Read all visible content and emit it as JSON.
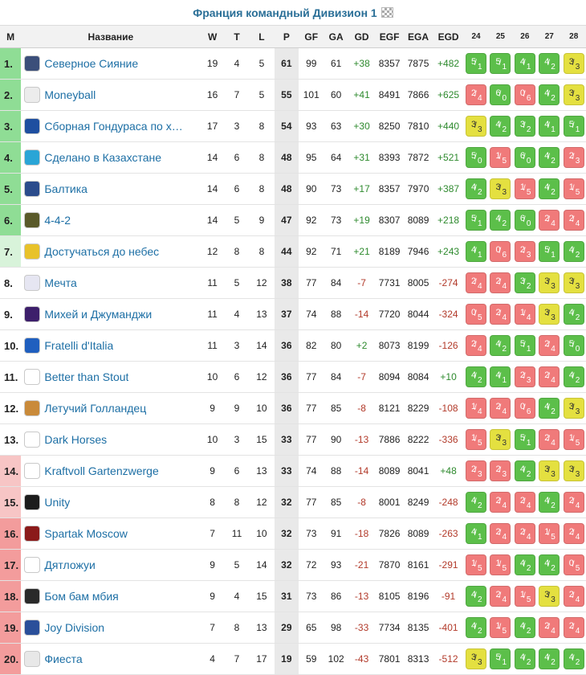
{
  "title": "Франция командный Дивизион 1",
  "headers": {
    "pos": "М",
    "name": "Название",
    "w": "W",
    "d": "T",
    "l": "L",
    "pts": "P",
    "gf": "GF",
    "ga": "GA",
    "gd": "GD",
    "egf": "EGF",
    "ega": "EGA",
    "egd": "EGD",
    "rounds": [
      "24",
      "25",
      "26",
      "27",
      "28"
    ]
  },
  "colors": {
    "title": "#2a6f97",
    "team_link": "#1d6fa5",
    "win": "#5cbf4a",
    "draw": "#e4e040",
    "loss": "#f07a7a",
    "zone_green": "#8fdd95",
    "zone_light_green": "#d8f3da",
    "zone_pink": "#f7c5c5",
    "zone_red": "#f39c9c"
  },
  "rows": [
    {
      "pos": "1.",
      "zone": "green",
      "team": "Северное Сияние",
      "logo_icon": "crest-icon",
      "logo_color": "#3b4f7a",
      "w": "19",
      "d": "4",
      "l": "5",
      "pts": "61",
      "gf": "99",
      "ga": "61",
      "gd": "+38",
      "egf": "8357",
      "ega": "7875",
      "egd": "+482",
      "res": [
        [
          "5",
          "1",
          "win"
        ],
        [
          "5",
          "1",
          "win"
        ],
        [
          "4",
          "1",
          "win"
        ],
        [
          "4",
          "2",
          "win"
        ],
        [
          "3",
          "3",
          "draw"
        ]
      ]
    },
    {
      "pos": "2.",
      "zone": "green",
      "team": "Moneyball",
      "logo_icon": "soccer-ball-icon",
      "logo_color": "#ececec",
      "w": "16",
      "d": "7",
      "l": "5",
      "pts": "55",
      "gf": "101",
      "ga": "60",
      "gd": "+41",
      "egf": "8491",
      "ega": "7866",
      "egd": "+625",
      "res": [
        [
          "2",
          "4",
          "loss"
        ],
        [
          "6",
          "0",
          "win"
        ],
        [
          "0",
          "6",
          "loss"
        ],
        [
          "4",
          "2",
          "win"
        ],
        [
          "3",
          "3",
          "draw"
        ]
      ]
    },
    {
      "pos": "3.",
      "zone": "green",
      "team": "Сборная Гондураса по х…",
      "logo_icon": "letter-h-icon",
      "logo_color": "#1e4fa0",
      "w": "17",
      "d": "3",
      "l": "8",
      "pts": "54",
      "gf": "93",
      "ga": "63",
      "gd": "+30",
      "egf": "8250",
      "ega": "7810",
      "egd": "+440",
      "res": [
        [
          "3",
          "3",
          "draw"
        ],
        [
          "4",
          "2",
          "win"
        ],
        [
          "3",
          "2",
          "win"
        ],
        [
          "4",
          "1",
          "win"
        ],
        [
          "5",
          "1",
          "win"
        ]
      ]
    },
    {
      "pos": "4.",
      "zone": "green",
      "team": "Сделано в Казахстане",
      "logo_icon": "kazakhstan-flag-icon",
      "logo_color": "#2aa5d6",
      "w": "14",
      "d": "6",
      "l": "8",
      "pts": "48",
      "gf": "95",
      "ga": "64",
      "gd": "+31",
      "egf": "8393",
      "ega": "7872",
      "egd": "+521",
      "res": [
        [
          "5",
          "0",
          "win"
        ],
        [
          "1",
          "5",
          "loss"
        ],
        [
          "6",
          "0",
          "win"
        ],
        [
          "4",
          "2",
          "win"
        ],
        [
          "2",
          "3",
          "loss"
        ]
      ]
    },
    {
      "pos": "5.",
      "zone": "green",
      "team": "Балтика",
      "logo_icon": "shield-icon",
      "logo_color": "#2b4c8c",
      "w": "14",
      "d": "6",
      "l": "8",
      "pts": "48",
      "gf": "90",
      "ga": "73",
      "gd": "+17",
      "egf": "8357",
      "ega": "7970",
      "egd": "+387",
      "res": [
        [
          "4",
          "2",
          "win"
        ],
        [
          "3",
          "3",
          "draw"
        ],
        [
          "1",
          "5",
          "loss"
        ],
        [
          "4",
          "2",
          "win"
        ],
        [
          "1",
          "5",
          "loss"
        ]
      ]
    },
    {
      "pos": "6.",
      "zone": "green",
      "team": "4-4-2",
      "logo_icon": "badge-icon",
      "logo_color": "#5a5a2a",
      "w": "14",
      "d": "5",
      "l": "9",
      "pts": "47",
      "gf": "92",
      "ga": "73",
      "gd": "+19",
      "egf": "8307",
      "ega": "8089",
      "egd": "+218",
      "res": [
        [
          "5",
          "1",
          "win"
        ],
        [
          "4",
          "2",
          "win"
        ],
        [
          "6",
          "0",
          "win"
        ],
        [
          "2",
          "4",
          "loss"
        ],
        [
          "2",
          "4",
          "loss"
        ]
      ]
    },
    {
      "pos": "7.",
      "zone": "lgreen",
      "team": "Достучаться до небес",
      "logo_icon": "crown-icon",
      "logo_color": "#e8c22a",
      "w": "12",
      "d": "8",
      "l": "8",
      "pts": "44",
      "gf": "92",
      "ga": "71",
      "gd": "+21",
      "egf": "8189",
      "ega": "7946",
      "egd": "+243",
      "res": [
        [
          "4",
          "1",
          "win"
        ],
        [
          "0",
          "6",
          "loss"
        ],
        [
          "2",
          "3",
          "loss"
        ],
        [
          "5",
          "1",
          "win"
        ],
        [
          "4",
          "2",
          "win"
        ]
      ]
    },
    {
      "pos": "8.",
      "zone": "white",
      "team": "Мечта",
      "logo_icon": "club-logo-icon",
      "logo_color": "#e6e6f2",
      "w": "11",
      "d": "5",
      "l": "12",
      "pts": "38",
      "gf": "77",
      "ga": "84",
      "gd": "-7",
      "egf": "7731",
      "ega": "8005",
      "egd": "-274",
      "res": [
        [
          "2",
          "4",
          "loss"
        ],
        [
          "2",
          "4",
          "loss"
        ],
        [
          "3",
          "2",
          "win"
        ],
        [
          "3",
          "3",
          "draw"
        ],
        [
          "3",
          "3",
          "draw"
        ]
      ]
    },
    {
      "pos": "9.",
      "zone": "white",
      "team": "Михей и Джуманджи",
      "logo_icon": "lion-crest-icon",
      "logo_color": "#3d1f6b",
      "w": "11",
      "d": "4",
      "l": "13",
      "pts": "37",
      "gf": "74",
      "ga": "88",
      "gd": "-14",
      "egf": "7720",
      "ega": "8044",
      "egd": "-324",
      "res": [
        [
          "0",
          "5",
          "loss"
        ],
        [
          "2",
          "4",
          "loss"
        ],
        [
          "1",
          "4",
          "loss"
        ],
        [
          "3",
          "3",
          "draw"
        ],
        [
          "4",
          "2",
          "win"
        ]
      ]
    },
    {
      "pos": "10.",
      "zone": "white",
      "team": "Fratelli d'Italia",
      "logo_icon": "blue-crest-icon",
      "logo_color": "#1f5fbf",
      "w": "11",
      "d": "3",
      "l": "14",
      "pts": "36",
      "gf": "82",
      "ga": "80",
      "gd": "+2",
      "egf": "8073",
      "ega": "8199",
      "egd": "-126",
      "res": [
        [
          "2",
          "4",
          "loss"
        ],
        [
          "4",
          "2",
          "win"
        ],
        [
          "5",
          "1",
          "win"
        ],
        [
          "2",
          "4",
          "loss"
        ],
        [
          "5",
          "0",
          "win"
        ]
      ]
    },
    {
      "pos": "11.",
      "zone": "white",
      "team": "Better than Stout",
      "logo_icon": "bts-logo-icon",
      "logo_color": "#ffffff",
      "w": "10",
      "d": "6",
      "l": "12",
      "pts": "36",
      "gf": "77",
      "ga": "84",
      "gd": "-7",
      "egf": "8094",
      "ega": "8084",
      "egd": "+10",
      "res": [
        [
          "4",
          "2",
          "win"
        ],
        [
          "4",
          "1",
          "win"
        ],
        [
          "2",
          "3",
          "loss"
        ],
        [
          "2",
          "4",
          "loss"
        ],
        [
          "4",
          "2",
          "win"
        ]
      ]
    },
    {
      "pos": "12.",
      "zone": "white",
      "team": "Летучий Голландец",
      "logo_icon": "ship-icon",
      "logo_color": "#c98a3a",
      "w": "9",
      "d": "9",
      "l": "10",
      "pts": "36",
      "gf": "77",
      "ga": "85",
      "gd": "-8",
      "egf": "8121",
      "ega": "8229",
      "egd": "-108",
      "res": [
        [
          "1",
          "4",
          "loss"
        ],
        [
          "2",
          "4",
          "loss"
        ],
        [
          "0",
          "6",
          "loss"
        ],
        [
          "4",
          "2",
          "win"
        ],
        [
          "3",
          "3",
          "draw"
        ]
      ]
    },
    {
      "pos": "13.",
      "zone": "white",
      "team": "Dark Horses",
      "logo_icon": "horse-icon",
      "logo_color": "#ffffff",
      "w": "10",
      "d": "3",
      "l": "15",
      "pts": "33",
      "gf": "77",
      "ga": "90",
      "gd": "-13",
      "egf": "7886",
      "ega": "8222",
      "egd": "-336",
      "res": [
        [
          "1",
          "5",
          "loss"
        ],
        [
          "3",
          "3",
          "draw"
        ],
        [
          "5",
          "1",
          "win"
        ],
        [
          "2",
          "4",
          "loss"
        ],
        [
          "1",
          "5",
          "loss"
        ]
      ]
    },
    {
      "pos": "14.",
      "zone": "pink",
      "team": "Kraftvoll Gartenzwerge",
      "logo_icon": "gnome-icon",
      "logo_color": "#ffffff",
      "w": "9",
      "d": "6",
      "l": "13",
      "pts": "33",
      "gf": "74",
      "ga": "88",
      "gd": "-14",
      "egf": "8089",
      "ega": "8041",
      "egd": "+48",
      "res": [
        [
          "2",
          "3",
          "loss"
        ],
        [
          "2",
          "3",
          "loss"
        ],
        [
          "4",
          "2",
          "win"
        ],
        [
          "3",
          "3",
          "draw"
        ],
        [
          "3",
          "3",
          "draw"
        ]
      ]
    },
    {
      "pos": "15.",
      "zone": "pink",
      "team": "Unity",
      "logo_icon": "lightning-icon",
      "logo_color": "#1c1c1c",
      "w": "8",
      "d": "8",
      "l": "12",
      "pts": "32",
      "gf": "77",
      "ga": "85",
      "gd": "-8",
      "egf": "8001",
      "ega": "8249",
      "egd": "-248",
      "res": [
        [
          "4",
          "2",
          "win"
        ],
        [
          "2",
          "4",
          "loss"
        ],
        [
          "2",
          "4",
          "loss"
        ],
        [
          "4",
          "2",
          "win"
        ],
        [
          "2",
          "4",
          "loss"
        ]
      ]
    },
    {
      "pos": "16.",
      "zone": "red",
      "team": "Spartak Moscow",
      "logo_icon": "spartak-icon",
      "logo_color": "#8b1a1a",
      "w": "7",
      "d": "11",
      "l": "10",
      "pts": "32",
      "gf": "73",
      "ga": "91",
      "gd": "-18",
      "egf": "7826",
      "ega": "8089",
      "egd": "-263",
      "res": [
        [
          "4",
          "1",
          "win"
        ],
        [
          "2",
          "4",
          "loss"
        ],
        [
          "2",
          "4",
          "loss"
        ],
        [
          "1",
          "5",
          "loss"
        ],
        [
          "2",
          "4",
          "loss"
        ]
      ]
    },
    {
      "pos": "17.",
      "zone": "red",
      "team": "Дятложуи",
      "logo_icon": "woodpecker-icon",
      "logo_color": "#ffffff",
      "w": "9",
      "d": "5",
      "l": "14",
      "pts": "32",
      "gf": "72",
      "ga": "93",
      "gd": "-21",
      "egf": "7870",
      "ega": "8161",
      "egd": "-291",
      "res": [
        [
          "1",
          "5",
          "loss"
        ],
        [
          "1",
          "5",
          "loss"
        ],
        [
          "4",
          "2",
          "win"
        ],
        [
          "4",
          "2",
          "win"
        ],
        [
          "0",
          "5",
          "loss"
        ]
      ]
    },
    {
      "pos": "18.",
      "zone": "red",
      "team": "Бом бам мбия",
      "logo_icon": "player-icon",
      "logo_color": "#2a2a2a",
      "w": "9",
      "d": "4",
      "l": "15",
      "pts": "31",
      "gf": "73",
      "ga": "86",
      "gd": "-13",
      "egf": "8105",
      "ega": "8196",
      "egd": "-91",
      "res": [
        [
          "4",
          "2",
          "win"
        ],
        [
          "2",
          "4",
          "loss"
        ],
        [
          "1",
          "5",
          "loss"
        ],
        [
          "3",
          "3",
          "draw"
        ],
        [
          "2",
          "4",
          "loss"
        ]
      ]
    },
    {
      "pos": "19.",
      "zone": "red",
      "team": "Joy Division",
      "logo_icon": "joy-division-icon",
      "logo_color": "#2a4f9a",
      "w": "7",
      "d": "8",
      "l": "13",
      "pts": "29",
      "gf": "65",
      "ga": "98",
      "gd": "-33",
      "egf": "7734",
      "ega": "8135",
      "egd": "-401",
      "res": [
        [
          "4",
          "2",
          "win"
        ],
        [
          "1",
          "5",
          "loss"
        ],
        [
          "4",
          "2",
          "win"
        ],
        [
          "2",
          "4",
          "loss"
        ],
        [
          "2",
          "4",
          "loss"
        ]
      ]
    },
    {
      "pos": "20.",
      "zone": "red",
      "team": "Фиеста",
      "logo_icon": "fiesta-icon",
      "logo_color": "#e8e8e8",
      "w": "4",
      "d": "7",
      "l": "17",
      "pts": "19",
      "gf": "59",
      "ga": "102",
      "gd": "-43",
      "egf": "7801",
      "ega": "8313",
      "egd": "-512",
      "res": [
        [
          "3",
          "3",
          "draw"
        ],
        [
          "5",
          "1",
          "win"
        ],
        [
          "4",
          "2",
          "win"
        ],
        [
          "4",
          "2",
          "win"
        ],
        [
          "4",
          "2",
          "win"
        ]
      ]
    }
  ]
}
